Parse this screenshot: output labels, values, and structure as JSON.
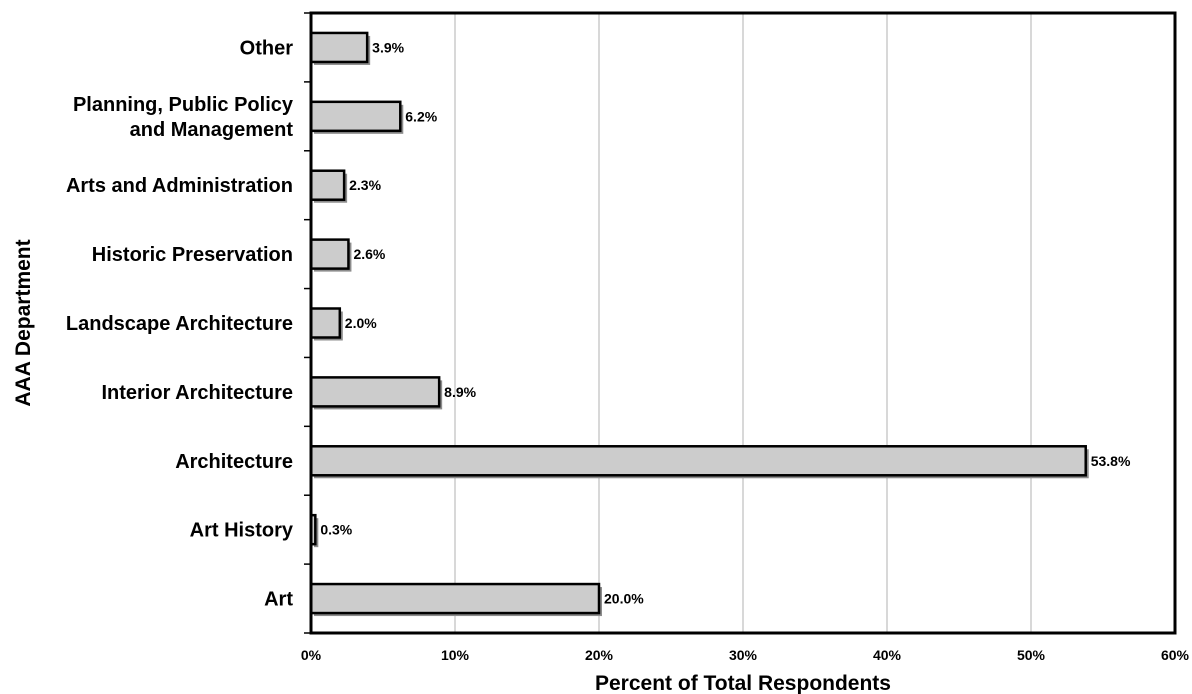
{
  "chart_data": {
    "type": "bar",
    "orientation": "horizontal",
    "title": "",
    "xlabel": "Percent of Total Respondents",
    "ylabel": "AAA Department",
    "categories": [
      "Other",
      "Planning, Public Policy and Management",
      "Arts and Administration",
      "Historic Preservation",
      "Landscape Architecture",
      "Interior Architecture",
      "Architecture",
      "Art History",
      "Art"
    ],
    "category_lines": [
      [
        "Other"
      ],
      [
        "Planning, Public Policy",
        "and Management"
      ],
      [
        "Arts and Administration"
      ],
      [
        "Historic Preservation"
      ],
      [
        "Landscape Architecture"
      ],
      [
        "Interior Architecture"
      ],
      [
        "Architecture"
      ],
      [
        "Art History"
      ],
      [
        "Art"
      ]
    ],
    "values": [
      3.9,
      6.2,
      2.3,
      2.6,
      2.0,
      8.9,
      53.8,
      0.3,
      20.0
    ],
    "value_labels": [
      "3.9%",
      "6.2%",
      "2.3%",
      "2.6%",
      "2.0%",
      "8.9%",
      "53.8%",
      "0.3%",
      "20.0%"
    ],
    "xlim": [
      0,
      60
    ],
    "xticks": [
      0,
      10,
      20,
      30,
      40,
      50,
      60
    ],
    "xtick_labels": [
      "0%",
      "10%",
      "20%",
      "30%",
      "40%",
      "50%",
      "60%"
    ],
    "grid": "vertical",
    "legend": "none",
    "colors": {
      "bar_fill": "#cccccc",
      "bar_stroke": "#000000",
      "bar_shadow": "#8c8c8c",
      "grid": "#b0b0b0",
      "frame": "#000000"
    }
  }
}
